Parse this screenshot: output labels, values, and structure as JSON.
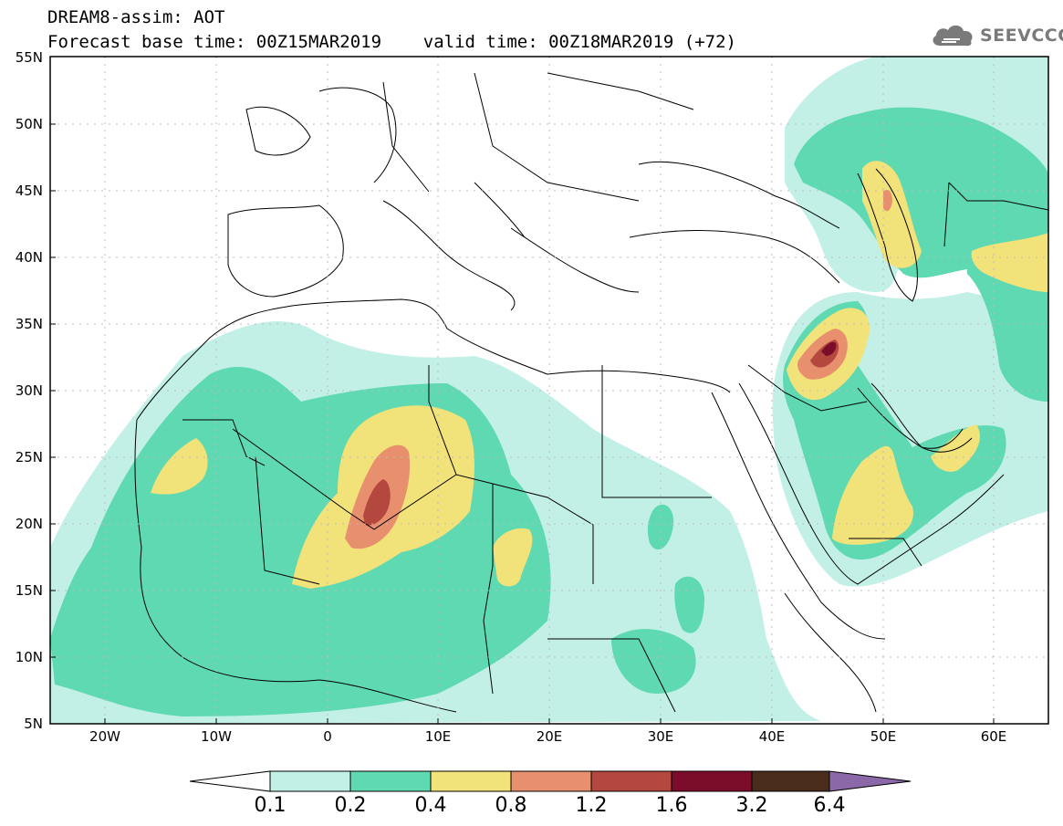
{
  "header": {
    "title_line1": "DREAM8-assim: AOT",
    "title_line2": "Forecast base time: 00Z15MAR2019    valid time: 00Z18MAR2019 (+72)",
    "logo_text": "SEEVCCC",
    "logo_icon": "cloud-icon"
  },
  "map": {
    "type": "geographic-field-map",
    "variable": "AOT",
    "lon_range": [
      -25,
      65
    ],
    "lat_range": [
      5,
      55
    ],
    "grid": true,
    "lat_ticks": [
      "55N",
      "50N",
      "45N",
      "40N",
      "35N",
      "30N",
      "25N",
      "20N",
      "15N",
      "10N",
      "5N"
    ],
    "lon_ticks": [
      "20W",
      "10W",
      "0",
      "10E",
      "20E",
      "30E",
      "40E",
      "50E",
      "60E"
    ]
  },
  "colorbar": {
    "levels": [
      "0.1",
      "0.2",
      "0.4",
      "0.8",
      "1.2",
      "1.6",
      "3.2",
      "6.4"
    ],
    "colors": [
      "#c2f0e6",
      "#5fd9b1",
      "#f2e27a",
      "#e8906e",
      "#b4483f",
      "#7b0c2a",
      "#4a2c1c",
      "#8b68a8"
    ]
  }
}
